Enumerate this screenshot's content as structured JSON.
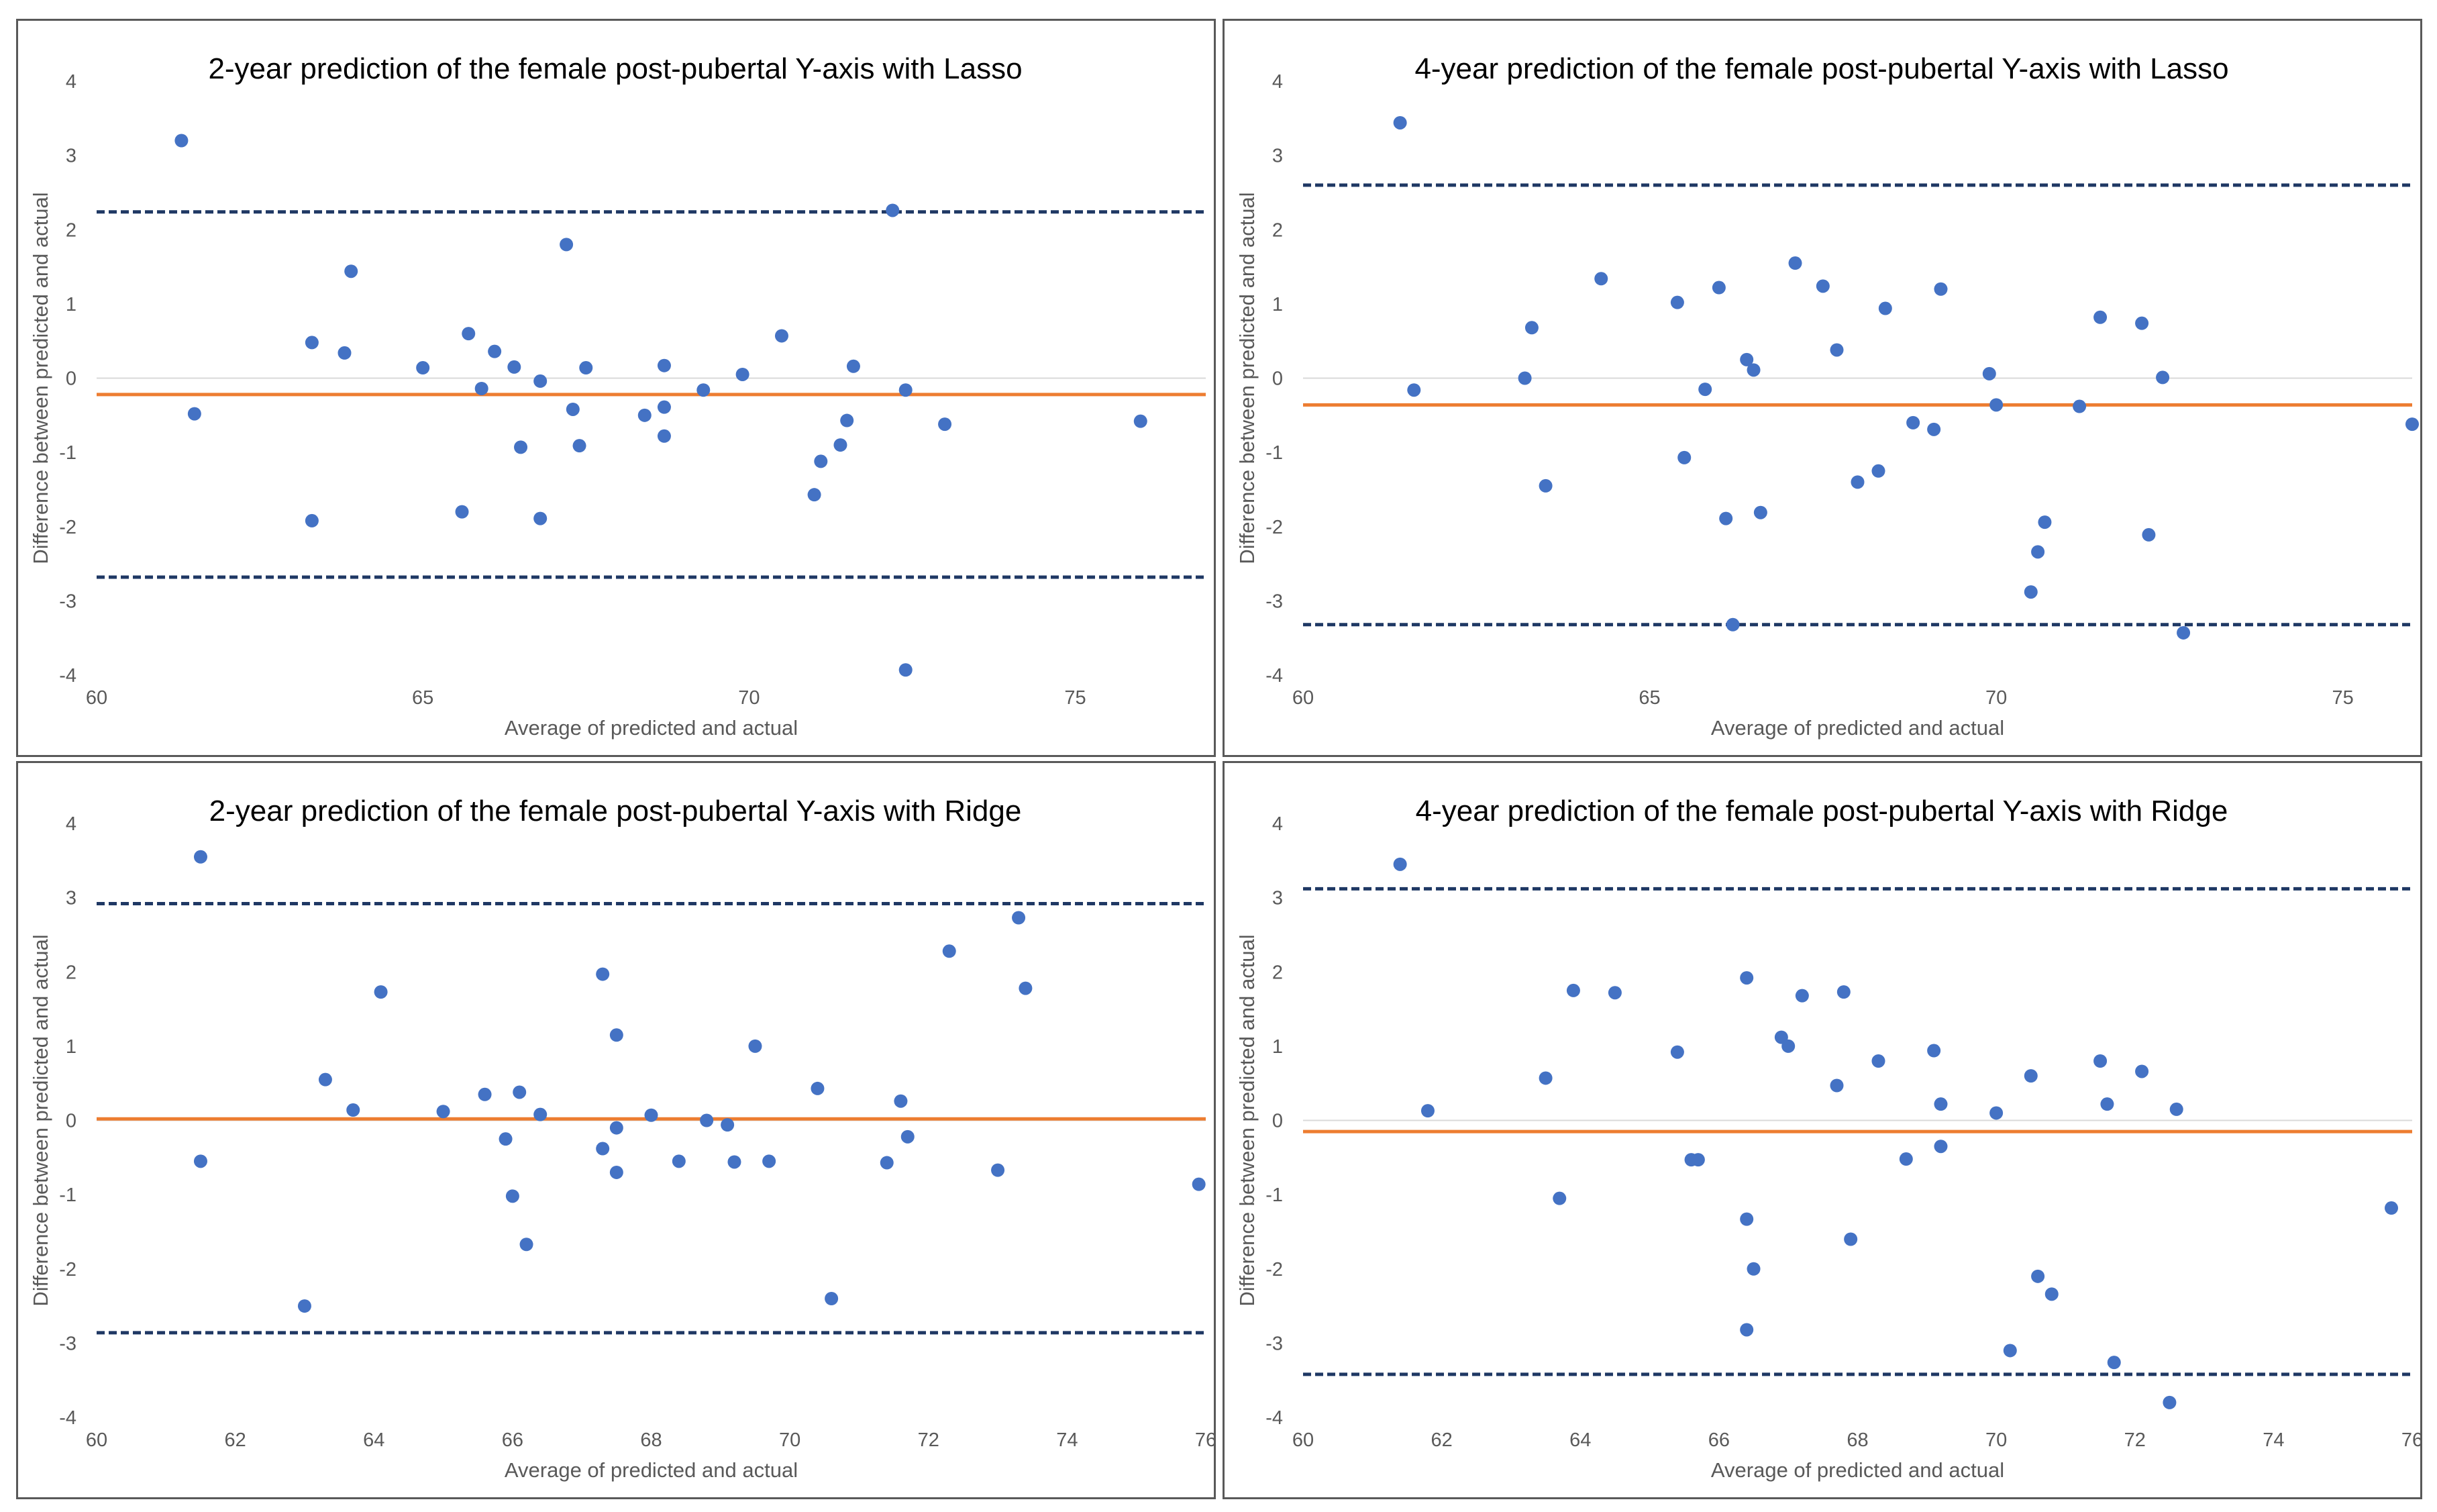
{
  "colors": {
    "points": "#4472C4",
    "mean_line": "#ED7D31",
    "limit_lines": "#1F3864",
    "zero_line": "#D9D9D9",
    "border": "#595959",
    "text": "#595959"
  },
  "chart_data": [
    {
      "type": "scatter",
      "title": "2-year prediction of the female post-pubertal Y-axis with Lasso",
      "xlabel": "Average of predicted and actual",
      "ylabel": "Difference between predicted and actual",
      "xlim": [
        60,
        77
      ],
      "ylim": [
        -4,
        4
      ],
      "x_ticks": [
        60,
        65,
        70,
        75
      ],
      "y_ticks": [
        -4,
        -3,
        -2,
        -1,
        0,
        1,
        2,
        3,
        4
      ],
      "mean_line": -0.22,
      "upper_limit": 2.24,
      "lower_limit": -2.68,
      "grid": false,
      "legend": "none",
      "points": [
        {
          "x": 61.3,
          "y": 3.2
        },
        {
          "x": 61.5,
          "y": -0.48
        },
        {
          "x": 63.3,
          "y": 0.48
        },
        {
          "x": 63.3,
          "y": -1.92
        },
        {
          "x": 63.8,
          "y": 0.34
        },
        {
          "x": 63.9,
          "y": 1.44
        },
        {
          "x": 65.0,
          "y": 0.14
        },
        {
          "x": 65.6,
          "y": -1.8
        },
        {
          "x": 65.7,
          "y": 0.6
        },
        {
          "x": 65.9,
          "y": -0.14
        },
        {
          "x": 66.1,
          "y": 0.36
        },
        {
          "x": 66.4,
          "y": 0.15
        },
        {
          "x": 66.5,
          "y": -0.93
        },
        {
          "x": 66.8,
          "y": -0.04
        },
        {
          "x": 66.8,
          "y": -1.89
        },
        {
          "x": 67.2,
          "y": 1.8
        },
        {
          "x": 67.3,
          "y": -0.42
        },
        {
          "x": 67.4,
          "y": -0.91
        },
        {
          "x": 67.5,
          "y": 0.14
        },
        {
          "x": 68.4,
          "y": -0.5
        },
        {
          "x": 68.7,
          "y": -0.39
        },
        {
          "x": 68.7,
          "y": 0.17
        },
        {
          "x": 68.7,
          "y": -0.78
        },
        {
          "x": 69.3,
          "y": -0.16
        },
        {
          "x": 69.9,
          "y": 0.05
        },
        {
          "x": 70.5,
          "y": 0.57
        },
        {
          "x": 71.0,
          "y": -1.57
        },
        {
          "x": 71.1,
          "y": -1.12
        },
        {
          "x": 71.4,
          "y": -0.9
        },
        {
          "x": 71.5,
          "y": -0.57
        },
        {
          "x": 71.6,
          "y": 0.16
        },
        {
          "x": 72.2,
          "y": 2.26
        },
        {
          "x": 72.4,
          "y": -0.16
        },
        {
          "x": 72.4,
          "y": -3.93
        },
        {
          "x": 73.0,
          "y": -0.62
        },
        {
          "x": 76.0,
          "y": -0.58
        }
      ]
    },
    {
      "type": "scatter",
      "title": "4-year prediction of the female post-pubertal Y-axis with Lasso",
      "xlabel": "Average of predicted and actual",
      "ylabel": "Difference between predicted and actual",
      "xlim": [
        60,
        76
      ],
      "ylim": [
        -4,
        4
      ],
      "x_ticks": [
        60,
        65,
        70,
        75
      ],
      "y_ticks": [
        -4,
        -3,
        -2,
        -1,
        0,
        1,
        2,
        3,
        4
      ],
      "mean_line": -0.36,
      "upper_limit": 2.6,
      "lower_limit": -3.32,
      "grid": false,
      "legend": "none",
      "points": [
        {
          "x": 61.4,
          "y": 3.44
        },
        {
          "x": 61.6,
          "y": -0.16
        },
        {
          "x": 63.2,
          "y": 0.0
        },
        {
          "x": 63.3,
          "y": 0.68
        },
        {
          "x": 63.5,
          "y": -1.45
        },
        {
          "x": 64.3,
          "y": 1.34
        },
        {
          "x": 65.4,
          "y": 1.02
        },
        {
          "x": 65.5,
          "y": -1.07
        },
        {
          "x": 65.8,
          "y": -0.15
        },
        {
          "x": 66.0,
          "y": 1.22
        },
        {
          "x": 66.1,
          "y": -1.89
        },
        {
          "x": 66.2,
          "y": -3.32
        },
        {
          "x": 66.4,
          "y": 0.25
        },
        {
          "x": 66.5,
          "y": 0.11
        },
        {
          "x": 66.6,
          "y": -1.81
        },
        {
          "x": 67.1,
          "y": 1.55
        },
        {
          "x": 67.5,
          "y": 1.24
        },
        {
          "x": 67.7,
          "y": 0.38
        },
        {
          "x": 68.0,
          "y": -1.4
        },
        {
          "x": 68.3,
          "y": -1.25
        },
        {
          "x": 68.4,
          "y": 0.94
        },
        {
          "x": 68.8,
          "y": -0.6
        },
        {
          "x": 69.1,
          "y": -0.69
        },
        {
          "x": 69.2,
          "y": 1.2
        },
        {
          "x": 69.9,
          "y": 0.06
        },
        {
          "x": 70.0,
          "y": -0.36
        },
        {
          "x": 70.5,
          "y": -2.88
        },
        {
          "x": 70.6,
          "y": -2.34
        },
        {
          "x": 70.7,
          "y": -1.94
        },
        {
          "x": 71.2,
          "y": -0.38
        },
        {
          "x": 71.5,
          "y": 0.82
        },
        {
          "x": 72.1,
          "y": 0.74
        },
        {
          "x": 72.2,
          "y": -2.11
        },
        {
          "x": 72.4,
          "y": 0.01
        },
        {
          "x": 72.7,
          "y": -3.43
        },
        {
          "x": 76.0,
          "y": -0.62
        }
      ]
    },
    {
      "type": "scatter",
      "title": "2-year prediction of the female post-pubertal Y-axis with Ridge",
      "xlabel": "Average of predicted and actual",
      "ylabel": "Difference between predicted and actual",
      "xlim": [
        60,
        76
      ],
      "ylim": [
        -4,
        4
      ],
      "x_ticks": [
        60,
        62,
        64,
        66,
        68,
        70,
        72,
        74,
        76
      ],
      "y_ticks": [
        -4,
        -3,
        -2,
        -1,
        0,
        1,
        2,
        3,
        4
      ],
      "mean_line": 0.02,
      "upper_limit": 2.92,
      "lower_limit": -2.86,
      "grid": false,
      "legend": "none",
      "points": [
        {
          "x": 61.5,
          "y": 3.55
        },
        {
          "x": 61.5,
          "y": -0.55
        },
        {
          "x": 63.0,
          "y": -2.5
        },
        {
          "x": 63.3,
          "y": 0.55
        },
        {
          "x": 63.7,
          "y": 0.14
        },
        {
          "x": 64.1,
          "y": 1.73
        },
        {
          "x": 65.0,
          "y": 0.12
        },
        {
          "x": 65.6,
          "y": 0.35
        },
        {
          "x": 65.9,
          "y": -0.25
        },
        {
          "x": 66.0,
          "y": -1.02
        },
        {
          "x": 66.1,
          "y": 0.38
        },
        {
          "x": 66.2,
          "y": -1.67
        },
        {
          "x": 66.4,
          "y": 0.08
        },
        {
          "x": 67.3,
          "y": 1.97
        },
        {
          "x": 67.3,
          "y": -0.38
        },
        {
          "x": 67.5,
          "y": -0.1
        },
        {
          "x": 67.5,
          "y": 1.15
        },
        {
          "x": 67.5,
          "y": -0.7
        },
        {
          "x": 68.0,
          "y": 0.07
        },
        {
          "x": 68.4,
          "y": -0.55
        },
        {
          "x": 68.8,
          "y": 0.0
        },
        {
          "x": 69.1,
          "y": -0.06
        },
        {
          "x": 69.2,
          "y": -0.56
        },
        {
          "x": 69.5,
          "y": 1.0
        },
        {
          "x": 69.7,
          "y": -0.55
        },
        {
          "x": 70.4,
          "y": 0.43
        },
        {
          "x": 70.6,
          "y": -2.4
        },
        {
          "x": 71.4,
          "y": -0.57
        },
        {
          "x": 71.6,
          "y": 0.26
        },
        {
          "x": 71.7,
          "y": -0.22
        },
        {
          "x": 72.3,
          "y": 2.28
        },
        {
          "x": 73.0,
          "y": -0.67
        },
        {
          "x": 73.3,
          "y": 2.73
        },
        {
          "x": 73.4,
          "y": 1.78
        },
        {
          "x": 75.9,
          "y": -0.86
        }
      ]
    },
    {
      "type": "scatter",
      "title": "4-year prediction of the female post-pubertal Y-axis with Ridge",
      "xlabel": "Average of predicted and actual",
      "ylabel": "Difference between predicted and actual",
      "xlim": [
        60,
        76
      ],
      "ylim": [
        -4,
        4
      ],
      "x_ticks": [
        60,
        62,
        64,
        66,
        68,
        70,
        72,
        74,
        76
      ],
      "y_ticks": [
        -4,
        -3,
        -2,
        -1,
        0,
        1,
        2,
        3,
        4
      ],
      "mean_line": -0.15,
      "upper_limit": 3.12,
      "lower_limit": -3.42,
      "grid": false,
      "legend": "none",
      "points": [
        {
          "x": 61.4,
          "y": 3.45
        },
        {
          "x": 61.8,
          "y": 0.13
        },
        {
          "x": 63.5,
          "y": 0.57
        },
        {
          "x": 63.7,
          "y": -1.05
        },
        {
          "x": 63.9,
          "y": 1.75
        },
        {
          "x": 64.5,
          "y": 1.72
        },
        {
          "x": 65.4,
          "y": 0.92
        },
        {
          "x": 65.6,
          "y": -0.53
        },
        {
          "x": 65.7,
          "y": -0.53
        },
        {
          "x": 66.4,
          "y": 1.92
        },
        {
          "x": 66.4,
          "y": -1.33
        },
        {
          "x": 66.4,
          "y": -2.82
        },
        {
          "x": 66.5,
          "y": -2.0
        },
        {
          "x": 66.9,
          "y": 1.12
        },
        {
          "x": 67.0,
          "y": 1.0
        },
        {
          "x": 67.2,
          "y": 1.68
        },
        {
          "x": 67.7,
          "y": 0.47
        },
        {
          "x": 67.8,
          "y": 1.73
        },
        {
          "x": 67.9,
          "y": -1.6
        },
        {
          "x": 68.3,
          "y": 0.8
        },
        {
          "x": 68.7,
          "y": -0.52
        },
        {
          "x": 69.1,
          "y": 0.94
        },
        {
          "x": 69.2,
          "y": 0.22
        },
        {
          "x": 69.2,
          "y": -0.35
        },
        {
          "x": 70.0,
          "y": 0.1
        },
        {
          "x": 70.2,
          "y": -3.1
        },
        {
          "x": 70.5,
          "y": 0.6
        },
        {
          "x": 70.6,
          "y": -2.1
        },
        {
          "x": 70.8,
          "y": -2.34
        },
        {
          "x": 71.5,
          "y": 0.8
        },
        {
          "x": 71.6,
          "y": 0.22
        },
        {
          "x": 71.7,
          "y": -3.26
        },
        {
          "x": 72.1,
          "y": 0.66
        },
        {
          "x": 72.5,
          "y": -3.8
        },
        {
          "x": 72.6,
          "y": 0.15
        },
        {
          "x": 75.7,
          "y": -1.18
        }
      ]
    }
  ]
}
